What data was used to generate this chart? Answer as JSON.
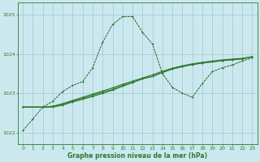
{
  "bg_color": "#cce8ef",
  "grid_color": "#a0c8d0",
  "line_color_spike": "#226622",
  "line_color_flat": "#2d7a2d",
  "xlabel": "Graphe pression niveau de la mer (hPa)",
  "xlim": [
    -0.5,
    23.5
  ],
  "ylim": [
    1021.7,
    1025.3
  ],
  "yticks": [
    1022,
    1023,
    1024,
    1025
  ],
  "xticks": [
    0,
    1,
    2,
    3,
    4,
    5,
    6,
    7,
    8,
    9,
    10,
    11,
    12,
    13,
    14,
    15,
    16,
    17,
    18,
    19,
    20,
    21,
    22,
    23
  ],
  "series1_x": [
    0,
    1,
    2,
    3,
    4,
    5,
    6,
    7,
    8,
    9,
    10,
    11,
    12,
    13,
    14,
    15,
    16,
    17,
    18,
    19,
    20,
    21,
    22,
    23
  ],
  "series1_y": [
    1022.05,
    1022.35,
    1022.65,
    1022.8,
    1023.05,
    1023.2,
    1023.3,
    1023.65,
    1024.3,
    1024.75,
    1024.95,
    1024.95,
    1024.55,
    1024.25,
    1023.5,
    1023.15,
    1023.0,
    1022.9,
    1023.25,
    1023.55,
    1023.65,
    1023.72,
    1023.82,
    1023.9
  ],
  "series2_x": [
    0,
    2,
    3,
    4,
    5,
    6,
    7,
    8,
    9,
    10,
    11,
    12,
    13,
    14,
    15,
    16,
    17,
    18,
    19,
    20,
    21,
    22,
    23
  ],
  "series2_y": [
    1022.65,
    1022.65,
    1022.65,
    1022.7,
    1022.78,
    1022.85,
    1022.92,
    1023.0,
    1023.08,
    1023.18,
    1023.27,
    1023.37,
    1023.43,
    1023.53,
    1023.62,
    1023.68,
    1023.73,
    1023.77,
    1023.8,
    1023.83,
    1023.85,
    1023.87,
    1023.93
  ],
  "series3_x": [
    0,
    2,
    3,
    4,
    5,
    6,
    7,
    8,
    9,
    10,
    11,
    12,
    13,
    14,
    15,
    16,
    17,
    18,
    19,
    20,
    21,
    22,
    23
  ],
  "series3_y": [
    1022.65,
    1022.65,
    1022.67,
    1022.72,
    1022.8,
    1022.87,
    1022.95,
    1023.03,
    1023.1,
    1023.2,
    1023.28,
    1023.37,
    1023.43,
    1023.53,
    1023.62,
    1023.68,
    1023.73,
    1023.77,
    1023.8,
    1023.83,
    1023.86,
    1023.88,
    1023.93
  ],
  "series4_x": [
    0,
    2,
    3,
    4,
    5,
    6,
    7,
    8,
    9,
    10,
    11,
    12,
    13,
    14,
    15,
    16,
    17,
    18,
    19,
    20,
    21,
    22,
    23
  ],
  "series4_y": [
    1022.65,
    1022.65,
    1022.67,
    1022.74,
    1022.82,
    1022.9,
    1022.98,
    1023.06,
    1023.14,
    1023.23,
    1023.31,
    1023.39,
    1023.47,
    1023.56,
    1023.64,
    1023.7,
    1023.75,
    1023.79,
    1023.82,
    1023.85,
    1023.87,
    1023.89,
    1023.93
  ]
}
